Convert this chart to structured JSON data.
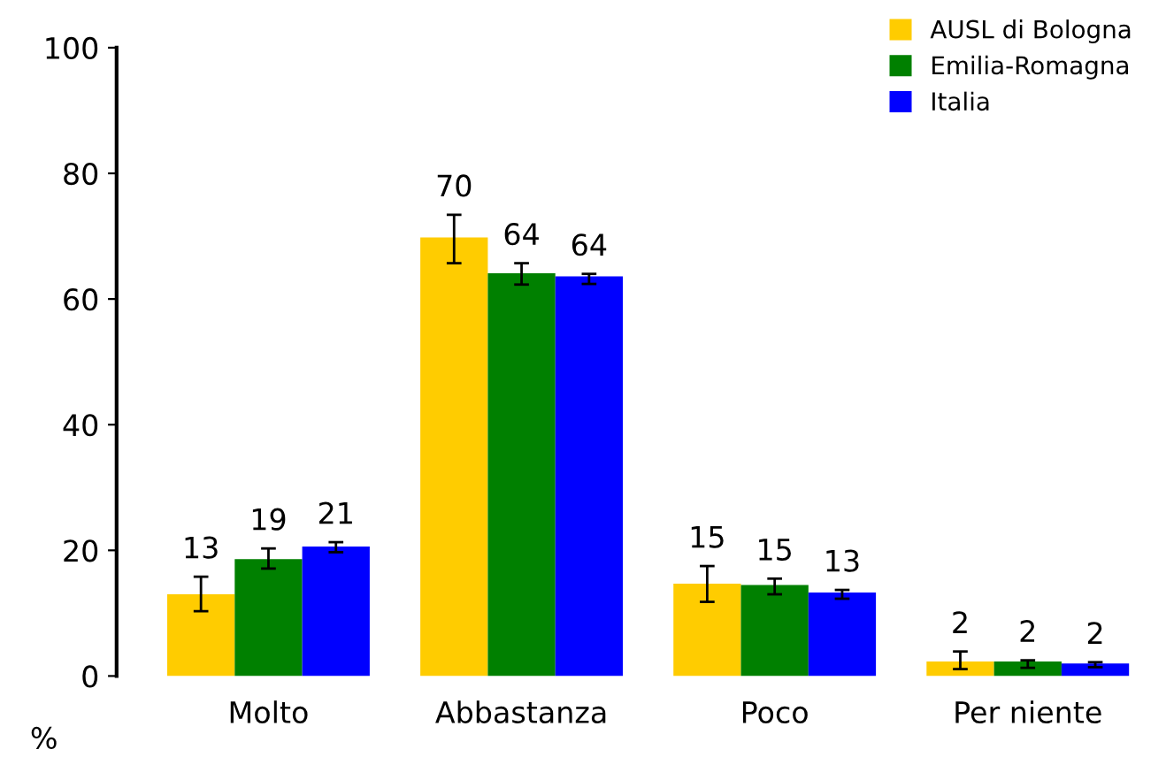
{
  "chart_data": {
    "type": "bar",
    "ylabel": "%",
    "categories": [
      "Molto",
      "Abbastanza",
      "Poco",
      "Per niente"
    ],
    "series": [
      {
        "name": "AUSL di Bologna",
        "color": "#ffcc00",
        "values": [
          13.0,
          69.8,
          14.7,
          2.3
        ],
        "errors": [
          [
            10.3,
            15.8
          ],
          [
            65.7,
            73.4
          ],
          [
            11.8,
            17.5
          ],
          [
            1.1,
            3.9
          ]
        ],
        "value_labels": [
          "13",
          "70",
          "15",
          "2"
        ]
      },
      {
        "name": "Emilia-Romagna",
        "color": "#008000",
        "values": [
          18.6,
          64.1,
          14.5,
          2.3
        ],
        "errors": [
          [
            17.1,
            20.3
          ],
          [
            62.3,
            65.7
          ],
          [
            13.0,
            15.5
          ],
          [
            1.3,
            2.5
          ]
        ],
        "value_labels": [
          "19",
          "64",
          "15",
          "2"
        ]
      },
      {
        "name": "Italia",
        "color": "#0000ff",
        "values": [
          20.6,
          63.6,
          13.3,
          2.0
        ],
        "errors": [
          [
            19.7,
            21.3
          ],
          [
            62.4,
            64.0
          ],
          [
            12.3,
            13.7
          ],
          [
            1.4,
            2.2
          ]
        ],
        "value_labels": [
          "21",
          "64",
          "13",
          "2"
        ]
      }
    ],
    "ylim": [
      0,
      100
    ],
    "yticks": [
      0,
      20,
      40,
      60,
      80,
      100
    ],
    "grid": false,
    "legend": "top right"
  }
}
